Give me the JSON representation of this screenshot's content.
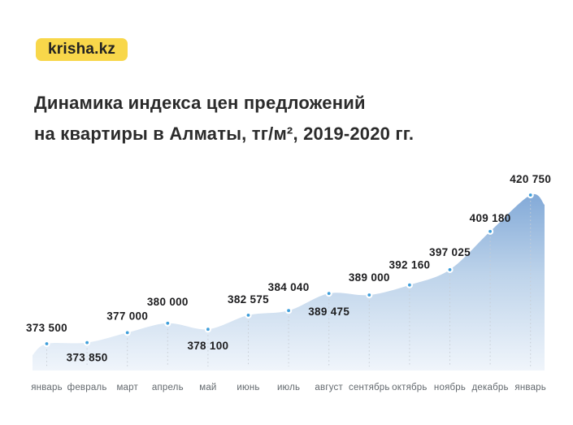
{
  "page": {
    "background": "#ffffff"
  },
  "logo": {
    "text": "krisha.kz",
    "background": "#F8D74A",
    "color": "#222222"
  },
  "title": {
    "line1": "Динамика индекса цен предложений",
    "line2": "на квартиры в Алматы, тг/м², 2019-2020 гг.",
    "color": "#2B2B2B"
  },
  "chart_data": {
    "type": "area",
    "title": "Динамика индекса цен предложений на квартиры в Алматы, тг/м², 2019-2020 гг.",
    "unit": "тг/м²",
    "period": "2019-2020",
    "categories": [
      "январь",
      "февраль",
      "март",
      "апрель",
      "май",
      "июнь",
      "июль",
      "август",
      "сентябрь",
      "октябрь",
      "ноябрь",
      "декабрь",
      "январь"
    ],
    "values": [
      373500,
      373850,
      377000,
      380000,
      378100,
      382575,
      384040,
      389475,
      389000,
      392160,
      397025,
      409180,
      420750
    ],
    "value_labels": [
      "373 500",
      "373 850",
      "377 000",
      "380 000",
      "378 100",
      "382 575",
      "384 040",
      "389 475",
      "389 000",
      "392 160",
      "397 025",
      "409 180",
      "420 750"
    ],
    "label_side": [
      "above",
      "below",
      "above",
      "above",
      "below",
      "above",
      "above",
      "below",
      "above",
      "above",
      "above",
      "above",
      "above"
    ],
    "ylim": [
      373500,
      420750
    ],
    "xlabel": "",
    "ylabel": "",
    "legend": "none",
    "grid": "dotted-vertical",
    "colors": {
      "point": "#3F9EDA",
      "point_ring": "#FFFFFF",
      "fill_top": "#83AAD8",
      "fill_mid": "#BDD3EA",
      "fill_bottom": "#F0F5FB",
      "value_label": "#1D1D1F",
      "axis_label": "#63696E",
      "dotted_line": "#C7CDD4"
    }
  }
}
